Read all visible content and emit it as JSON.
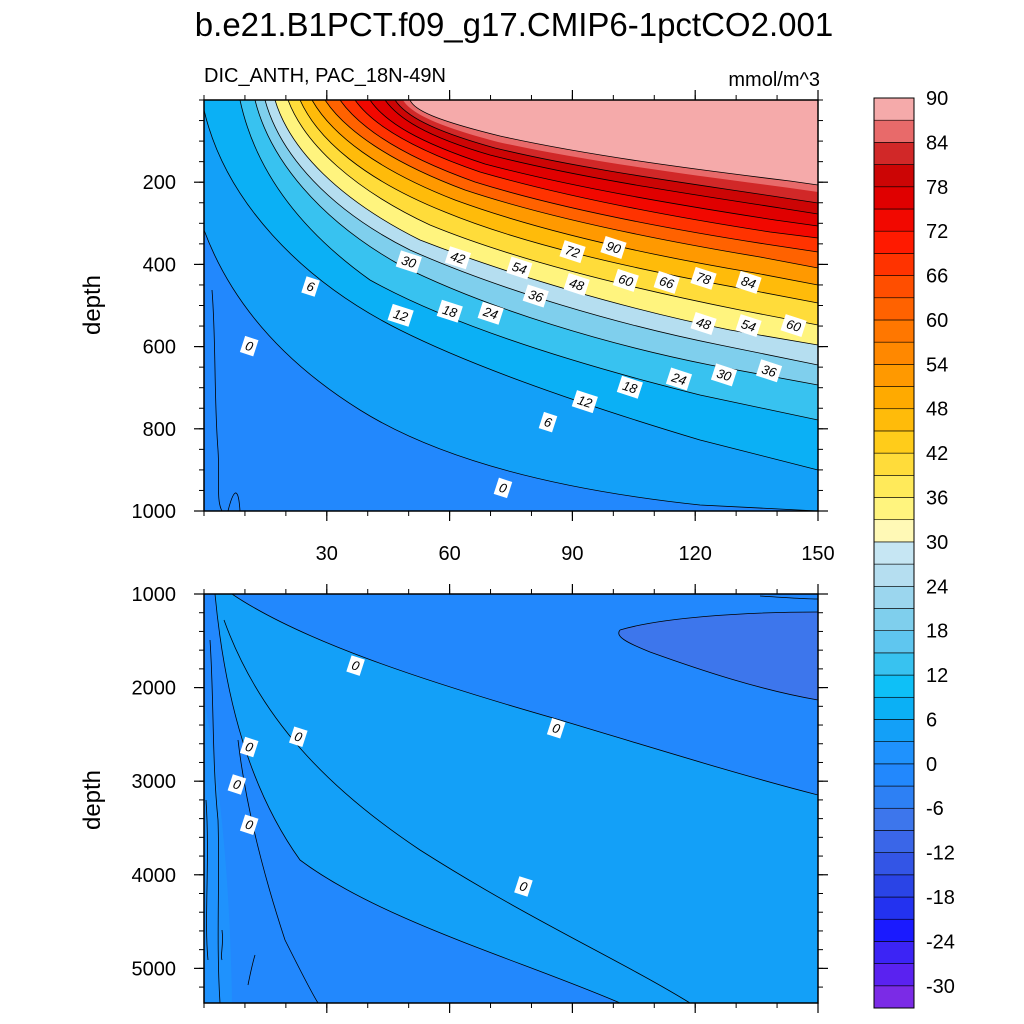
{
  "chart_data": {
    "type": "contour",
    "title": "b.e21.B1PCT.f09_g17.CMIP6-1pctCO2.001",
    "subtitle_left": "DIC_ANTH, PAC_18N-49N",
    "units": "mmol/m^3",
    "x": {
      "label": "",
      "range": [
        0,
        150
      ],
      "ticks": [
        30,
        60,
        90,
        120,
        150
      ],
      "tick_labels": [
        "30",
        "60",
        "90",
        "120",
        "150"
      ]
    },
    "colorbar": {
      "levels": [
        -30,
        -27,
        -24,
        -21,
        -18,
        -15,
        -12,
        -9,
        -6,
        -3,
        0,
        3,
        6,
        9,
        12,
        15,
        18,
        21,
        24,
        27,
        30,
        33,
        36,
        39,
        42,
        45,
        48,
        51,
        54,
        57,
        60,
        63,
        66,
        69,
        72,
        75,
        78,
        81,
        84,
        87,
        90
      ],
      "labels": [
        "90",
        "84",
        "78",
        "72",
        "66",
        "60",
        "54",
        "48",
        "42",
        "36",
        "30",
        "24",
        "18",
        "12",
        "6",
        "0",
        "-6",
        "-12",
        "-18",
        "-24",
        "-30"
      ],
      "colors": [
        "#7b2be6",
        "#5a22f0",
        "#3c24f5",
        "#1a1aff",
        "#2332f0",
        "#2a44e6",
        "#3355e6",
        "#3a66e8",
        "#3d76ec",
        "#2d80f4",
        "#2288fd",
        "#1f92fd",
        "#13a0f8",
        "#0bb0f5",
        "#0ec0f7",
        "#38c2f0",
        "#5fc6ef",
        "#7fcfed",
        "#9bd6ee",
        "#b5def0",
        "#c6e6f3",
        "#fff9b6",
        "#fff47e",
        "#ffea5a",
        "#ffdc3a",
        "#ffcc1a",
        "#ffbb0a",
        "#ffaa00",
        "#ff9900",
        "#ff8800",
        "#ff7700",
        "#ff6200",
        "#ff4e00",
        "#ff3300",
        "#ff1a00",
        "#f20800",
        "#e00000",
        "#cc0505",
        "#d12828",
        "#e86a6a",
        "#f5aaaa"
      ]
    },
    "panels": [
      {
        "name": "upper",
        "ylabel": "depth",
        "y_range": [
          0,
          1000
        ],
        "y_ticks": [
          200,
          400,
          600,
          800,
          1000
        ],
        "y_tick_labels": [
          "200",
          "400",
          "600",
          "800",
          "1000"
        ],
        "contour_labels": [
          {
            "text": "90",
            "x": 100,
            "y": 360
          },
          {
            "text": "72",
            "x": 90,
            "y": 370
          },
          {
            "text": "54",
            "x": 77,
            "y": 410
          },
          {
            "text": "42",
            "x": 62,
            "y": 385
          },
          {
            "text": "30",
            "x": 50,
            "y": 395
          },
          {
            "text": "78",
            "x": 122,
            "y": 435
          },
          {
            "text": "84",
            "x": 133,
            "y": 445
          },
          {
            "text": "66",
            "x": 113,
            "y": 445
          },
          {
            "text": "60",
            "x": 103,
            "y": 440
          },
          {
            "text": "48",
            "x": 91,
            "y": 450
          },
          {
            "text": "36",
            "x": 81,
            "y": 478
          },
          {
            "text": "24",
            "x": 70,
            "y": 520
          },
          {
            "text": "18",
            "x": 60,
            "y": 515
          },
          {
            "text": "12",
            "x": 48,
            "y": 525
          },
          {
            "text": "6",
            "x": 26,
            "y": 455
          },
          {
            "text": "0",
            "x": 11,
            "y": 600
          },
          {
            "text": "48",
            "x": 122,
            "y": 545
          },
          {
            "text": "54",
            "x": 133,
            "y": 550
          },
          {
            "text": "60",
            "x": 144,
            "y": 550
          },
          {
            "text": "36",
            "x": 138,
            "y": 660
          },
          {
            "text": "30",
            "x": 127,
            "y": 670
          },
          {
            "text": "24",
            "x": 116,
            "y": 680
          },
          {
            "text": "18",
            "x": 104,
            "y": 700
          },
          {
            "text": "12",
            "x": 93,
            "y": 735
          },
          {
            "text": "6",
            "x": 84,
            "y": 785
          },
          {
            "text": "0",
            "x": 73,
            "y": 945
          }
        ]
      },
      {
        "name": "lower",
        "ylabel": "depth",
        "y_range": [
          1000,
          5370
        ],
        "y_ticks": [
          1000,
          2000,
          3000,
          4000,
          5000
        ],
        "y_tick_labels": [
          "1000",
          "2000",
          "3000",
          "4000",
          "5000"
        ],
        "contour_labels": [
          {
            "text": "0",
            "x": 37,
            "y": 1770
          },
          {
            "text": "0",
            "x": 86,
            "y": 2440
          },
          {
            "text": "0",
            "x": 23,
            "y": 2530
          },
          {
            "text": "0",
            "x": 11,
            "y": 2640
          },
          {
            "text": "0",
            "x": 8,
            "y": 3040
          },
          {
            "text": "0",
            "x": 11,
            "y": 3470
          },
          {
            "text": "0",
            "x": 78,
            "y": 4130
          }
        ]
      }
    ]
  }
}
